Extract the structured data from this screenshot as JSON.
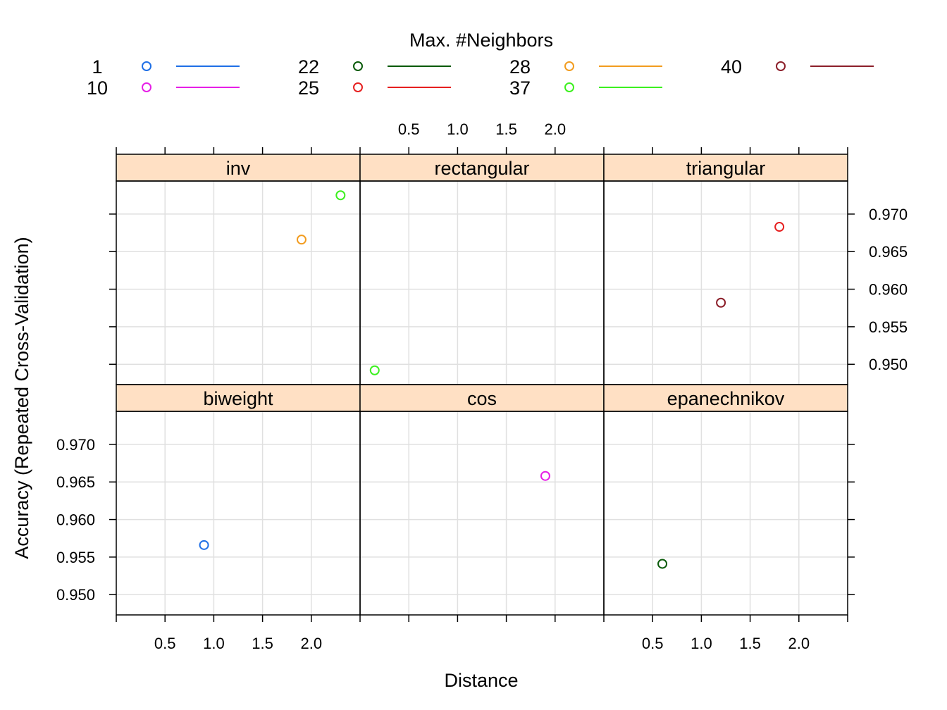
{
  "chart_data": {
    "type": "scatter",
    "legend": {
      "title": "Max. #Neighbors",
      "placement": "top",
      "entries": [
        {
          "label": "1",
          "color": "#1f6fe6"
        },
        {
          "label": "10",
          "color": "#e61fe6"
        },
        {
          "label": "22",
          "color": "#0a5a0a"
        },
        {
          "label": "25",
          "color": "#e61f1f"
        },
        {
          "label": "28",
          "color": "#f29c1f"
        },
        {
          "label": "37",
          "color": "#3cf01f"
        },
        {
          "label": "40",
          "color": "#8c1f2a"
        }
      ]
    },
    "xlabel": "Distance",
    "ylabel": "Accuracy (Repeated Cross-Validation)",
    "xlim": [
      0.0,
      2.5
    ],
    "ylim": [
      0.9473,
      0.9744
    ],
    "x_ticks": [
      "0.5",
      "1.0",
      "1.5",
      "2.0"
    ],
    "y_ticks": [
      "0.950",
      "0.955",
      "0.960",
      "0.965",
      "0.970"
    ],
    "x_tick_values": [
      0.5,
      1.0,
      1.5,
      2.0
    ],
    "y_tick_values": [
      0.95,
      0.955,
      0.96,
      0.965,
      0.97
    ],
    "grid": true,
    "panels": [
      {
        "title": "inv",
        "points": [
          {
            "neighbors": "28",
            "x": 1.9,
            "y": 0.9666
          },
          {
            "neighbors": "37",
            "x": 2.3,
            "y": 0.9725
          }
        ]
      },
      {
        "title": "rectangular",
        "points": [
          {
            "neighbors": "37",
            "x": 0.15,
            "y": 0.9492
          }
        ]
      },
      {
        "title": "triangular",
        "points": [
          {
            "neighbors": "40",
            "x": 1.2,
            "y": 0.9582
          },
          {
            "neighbors": "25",
            "x": 1.8,
            "y": 0.9683
          }
        ]
      },
      {
        "title": "biweight",
        "points": [
          {
            "neighbors": "1",
            "x": 0.9,
            "y": 0.9566
          }
        ]
      },
      {
        "title": "cos",
        "points": [
          {
            "neighbors": "10",
            "x": 1.9,
            "y": 0.9658
          }
        ]
      },
      {
        "title": "epanechnikov",
        "points": [
          {
            "neighbors": "22",
            "x": 0.6,
            "y": 0.9541
          }
        ]
      }
    ]
  }
}
